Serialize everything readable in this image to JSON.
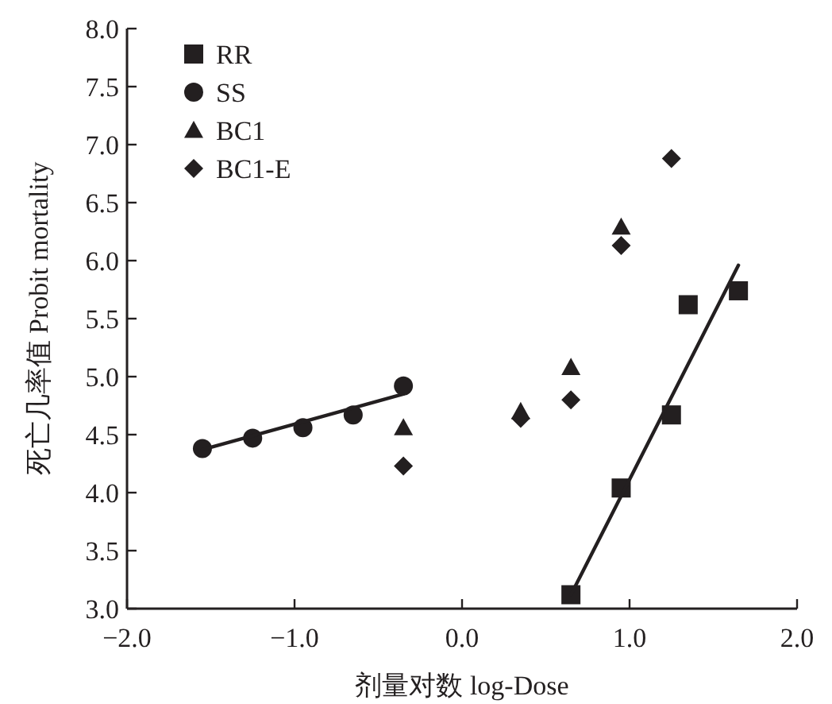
{
  "chart_data": {
    "type": "scatter",
    "xlabel": "剂量对数 log-Dose",
    "ylabel": "死亡几率值 Probit mortality",
    "xlim": [
      -2.0,
      2.0
    ],
    "xticks": [
      {
        "value": -2,
        "label": "−2.0"
      },
      {
        "value": -1,
        "label": "−1.0"
      },
      {
        "value": 0,
        "label": "0.0"
      },
      {
        "value": 1,
        "label": "1.0"
      },
      {
        "value": 2,
        "label": "2.0"
      }
    ],
    "ylim": [
      3.0,
      8.0
    ],
    "yticks": [
      {
        "value": 3,
        "label": "3.0"
      },
      {
        "value": 3.5,
        "label": "3.5"
      },
      {
        "value": 4,
        "label": "4.0"
      },
      {
        "value": 4.5,
        "label": "4.5"
      },
      {
        "value": 5,
        "label": "5.0"
      },
      {
        "value": 5.5,
        "label": "5.5"
      },
      {
        "value": 6,
        "label": "6.0"
      },
      {
        "value": 6.5,
        "label": "6.5"
      },
      {
        "value": 7,
        "label": "7.0"
      },
      {
        "value": 7.5,
        "label": "7.5"
      },
      {
        "value": 8,
        "label": "8.0"
      }
    ],
    "grid": false,
    "legend": "top left",
    "series": [
      {
        "name": "RR",
        "marker": "square",
        "color": "#231f20",
        "x": [
          0.65,
          0.95,
          1.25,
          1.35,
          1.65
        ],
        "values": [
          3.12,
          4.04,
          4.67,
          5.62,
          5.74
        ]
      },
      {
        "name": "SS",
        "marker": "circle",
        "color": "#231f20",
        "x": [
          -1.55,
          -1.25,
          -0.95,
          -0.65,
          -0.35
        ],
        "values": [
          4.38,
          4.47,
          4.56,
          4.67,
          4.92
        ]
      },
      {
        "name": "BC1",
        "marker": "triangle",
        "color": "#231f20",
        "x": [
          -0.35,
          0.35,
          0.65,
          0.95
        ],
        "values": [
          4.56,
          4.7,
          5.08,
          6.29
        ]
      },
      {
        "name": "BC1-E",
        "marker": "diamond",
        "color": "#231f20",
        "x": [
          -0.35,
          0.35,
          0.65,
          0.95,
          1.25
        ],
        "values": [
          4.23,
          4.64,
          4.8,
          6.13,
          6.88
        ]
      },
      {
        "type": "line",
        "marker": "none",
        "line_style": "solid",
        "color": "#231f20",
        "x": [
          0.65,
          1.65
        ],
        "values": [
          3.12,
          5.96
        ]
      },
      {
        "type": "line",
        "marker": "none",
        "line_style": "solid",
        "color": "#231f20",
        "x": [
          -1.55,
          -0.35
        ],
        "values": [
          4.37,
          4.85
        ]
      }
    ]
  }
}
